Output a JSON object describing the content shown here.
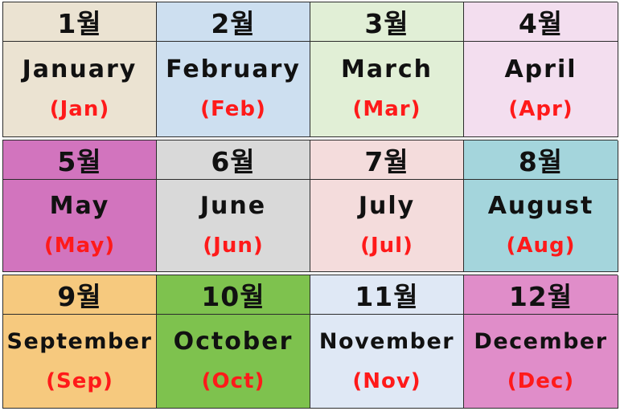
{
  "months": [
    {
      "korean": "1월",
      "english": "January",
      "abbr": "(Jan)",
      "color": "#ebe3d2"
    },
    {
      "korean": "2월",
      "english": "February",
      "abbr": "(Feb)",
      "color": "#cddff0"
    },
    {
      "korean": "3월",
      "english": "March",
      "abbr": "(Mar)",
      "color": "#e1efd6"
    },
    {
      "korean": "4월",
      "english": "April",
      "abbr": "(Apr)",
      "color": "#f3deef"
    },
    {
      "korean": "5월",
      "english": "May",
      "abbr": "(May)",
      "color": "#d274be"
    },
    {
      "korean": "6월",
      "english": "June",
      "abbr": "(Jun)",
      "color": "#d9d9d9"
    },
    {
      "korean": "7월",
      "english": "July",
      "abbr": "(Jul)",
      "color": "#f4dcdc"
    },
    {
      "korean": "8월",
      "english": "August",
      "abbr": "(Aug)",
      "color": "#a4d5dc"
    },
    {
      "korean": "9월",
      "english": "September",
      "abbr": "(Sep)",
      "color": "#f6c97e"
    },
    {
      "korean": "10월",
      "english": "October",
      "abbr": "(Oct)",
      "color": "#7ec24e"
    },
    {
      "korean": "11월",
      "english": "November",
      "abbr": "(Nov)",
      "color": "#dfe8f5"
    },
    {
      "korean": "12월",
      "english": "December",
      "abbr": "(Dec)",
      "color": "#e08dc9"
    }
  ]
}
